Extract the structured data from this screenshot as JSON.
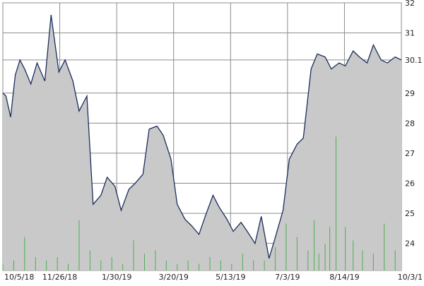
{
  "chart_data": {
    "type": "area",
    "title": "",
    "xlabel": "",
    "ylabel": "",
    "ylim": [
      23.1,
      32
    ],
    "yticks": [
      24,
      25,
      26,
      27,
      28,
      29,
      30.1,
      31,
      32
    ],
    "xtick_labels": [
      "10/5/18",
      "11/26/18",
      "1/30/19",
      "3/20/19",
      "5/13/19",
      "7/3/19",
      "8/14/19",
      "10/3/1"
    ],
    "grid": true,
    "colors": {
      "area_fill": "#c9c9c9",
      "price_line": "#1a2e5c",
      "volume_bars": "#4caf50",
      "grid": "#8c8c8c"
    },
    "series": [
      {
        "kind": "price",
        "x": [
          0,
          2,
          5,
          8,
          11,
          14,
          18,
          22,
          27,
          31,
          36,
          40,
          45,
          49,
          54,
          58,
          63,
          67,
          72,
          76,
          81,
          85,
          90,
          94,
          99,
          103,
          108,
          112,
          117,
          121,
          126,
          130,
          135,
          139,
          144,
          148,
          153,
          157,
          162,
          166,
          171,
          175,
          180,
          184,
          189,
          193,
          198,
          202,
          207,
          211,
          216,
          220,
          225,
          229,
          234,
          238,
          243,
          247,
          252,
          256
        ],
        "y": [
          29.0,
          28.9,
          28.2,
          29.6,
          30.1,
          29.8,
          29.3,
          30.0,
          29.4,
          31.6,
          29.7,
          30.1,
          29.4,
          28.4,
          28.9,
          25.3,
          25.6,
          26.2,
          25.9,
          25.1,
          25.8,
          26.0,
          26.3,
          27.8,
          27.9,
          27.6,
          26.8,
          25.3,
          24.8,
          24.6,
          24.3,
          24.9,
          25.6,
          25.2,
          24.8,
          24.4,
          24.7,
          24.4,
          24.0,
          24.9,
          23.5,
          24.2,
          25.1,
          26.8,
          27.3,
          27.5,
          29.8,
          30.3,
          30.2,
          29.8,
          30.0,
          29.9,
          30.4,
          30.2,
          30.0,
          30.6,
          30.1,
          30.0,
          30.2,
          30.1
        ]
      },
      {
        "kind": "volume",
        "x": [
          0,
          7,
          14,
          21,
          28,
          35,
          42,
          49,
          56,
          63,
          70,
          77,
          84,
          91,
          98,
          105,
          112,
          119,
          126,
          133,
          140,
          147,
          154,
          161,
          168,
          175,
          182,
          189,
          196,
          200,
          203,
          207,
          210,
          214,
          220,
          225,
          231,
          238,
          245,
          252
        ],
        "y": [
          0.2,
          0.3,
          1.0,
          0.4,
          0.3,
          0.4,
          0.2,
          1.5,
          0.6,
          0.3,
          0.4,
          0.2,
          0.9,
          0.5,
          0.6,
          0.3,
          0.2,
          0.3,
          0.2,
          0.4,
          0.3,
          0.2,
          0.5,
          0.3,
          0.3,
          0.7,
          1.4,
          1.0,
          0.6,
          1.5,
          0.5,
          0.8,
          1.3,
          4.0,
          1.3,
          0.9,
          0.6,
          0.5,
          1.4,
          0.6
        ]
      }
    ]
  }
}
